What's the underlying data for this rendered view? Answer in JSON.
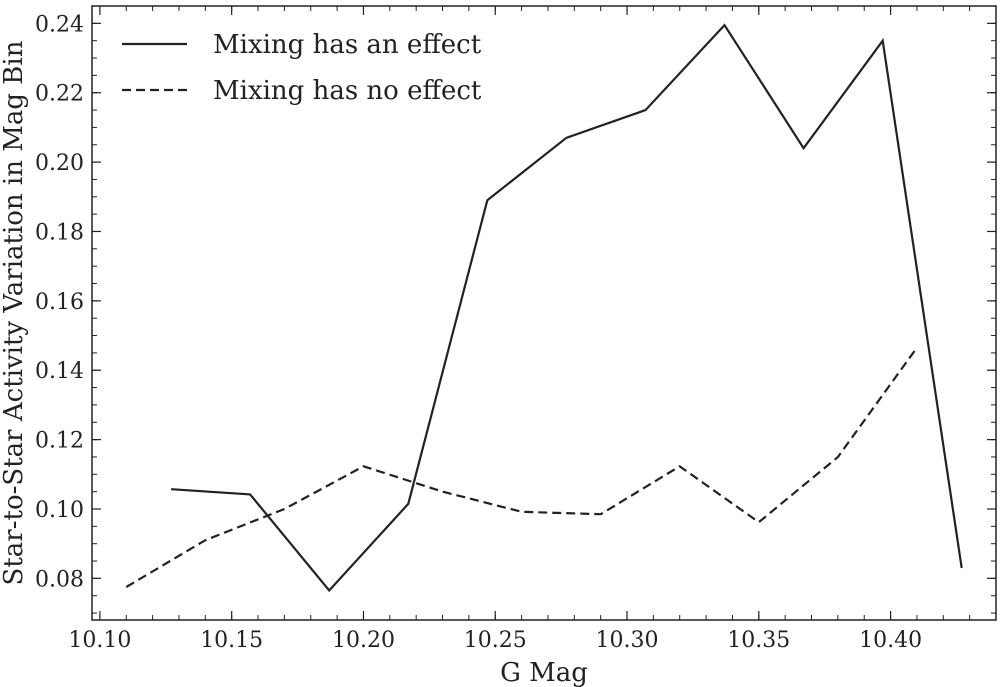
{
  "chart_data": {
    "type": "line",
    "xlabel": "G Mag",
    "ylabel": "Star-to-Star Activity Variation in Mag Bin",
    "xlim": [
      10.097,
      10.44
    ],
    "ylim": [
      0.068,
      0.245
    ],
    "xticks": [
      "10.10",
      "10.15",
      "10.20",
      "10.25",
      "10.30",
      "10.35",
      "10.40"
    ],
    "yticks": [
      "0.08",
      "0.10",
      "0.12",
      "0.14",
      "0.16",
      "0.18",
      "0.20",
      "0.22",
      "0.24"
    ],
    "grid": false,
    "legend_position": "top-left",
    "series": [
      {
        "name": "Mixing has an effect",
        "style": "solid",
        "color": "#222222",
        "x": [
          10.127,
          10.157,
          10.187,
          10.217,
          10.247,
          10.277,
          10.307,
          10.337,
          10.367,
          10.397,
          10.427
        ],
        "y": [
          0.1057,
          0.1042,
          0.0765,
          0.1015,
          0.189,
          0.207,
          0.215,
          0.2395,
          0.204,
          0.235,
          0.083
        ]
      },
      {
        "name": "Mixing has no effect",
        "style": "dashed",
        "color": "#222222",
        "x": [
          10.11,
          10.14,
          10.17,
          10.2,
          10.23,
          10.26,
          10.29,
          10.32,
          10.35,
          10.38,
          10.41
        ],
        "y": [
          0.0775,
          0.091,
          0.1,
          0.1123,
          0.105,
          0.0992,
          0.0985,
          0.1123,
          0.0962,
          0.115,
          0.1465
        ]
      }
    ]
  }
}
